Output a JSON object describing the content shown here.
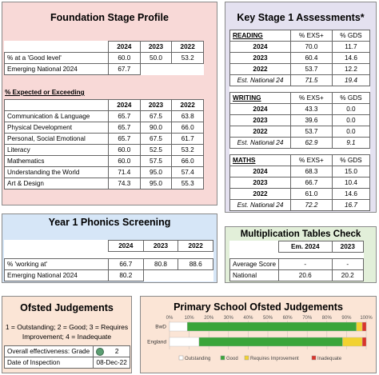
{
  "colors": {
    "outstanding": "#ffffff",
    "good": "#3aa53a",
    "requires_improvement": "#f2d231",
    "inadequate": "#d9342b",
    "grade_dot": "#5b9e72"
  },
  "fsp": {
    "title": "Foundation Stage Profile",
    "years": [
      "2024",
      "2023",
      "2022"
    ],
    "good_level": {
      "label": "% at a 'Good level'",
      "values": [
        "60.0",
        "50.0",
        "53.2"
      ]
    },
    "national": {
      "label": "Emerging National 2024",
      "value": "67.7"
    },
    "section_label": "% Expected or Exceeding",
    "rows": [
      {
        "label": "Communication & Language",
        "values": [
          "65.7",
          "67.5",
          "63.8"
        ]
      },
      {
        "label": "Physical Development",
        "values": [
          "65.7",
          "90.0",
          "66.0"
        ]
      },
      {
        "label": "Personal, Social Emotional",
        "values": [
          "65.7",
          "67.5",
          "61.7"
        ]
      },
      {
        "label": "Literacy",
        "values": [
          "60.0",
          "52.5",
          "53.2"
        ]
      },
      {
        "label": "Mathematics",
        "values": [
          "60.0",
          "57.5",
          "66.0"
        ]
      },
      {
        "label": "Understanding the World",
        "values": [
          "71.4",
          "95.0",
          "57.4"
        ]
      },
      {
        "label": "Art & Design",
        "values": [
          "74.3",
          "95.0",
          "55.3"
        ]
      }
    ]
  },
  "ks1": {
    "title": "Key Stage 1 Assessments*",
    "col1": "% EXS+",
    "col2": "% GDS",
    "subjects": [
      {
        "name": "READING",
        "col1": "% EXS+",
        "col2": "% GDS",
        "rows": [
          {
            "label": "2024",
            "exs": "70.0",
            "gds": "11.7"
          },
          {
            "label": "2023",
            "exs": "60.4",
            "gds": "14.6"
          },
          {
            "label": "2022",
            "exs": "53.7",
            "gds": "12.2"
          }
        ],
        "est": {
          "label": "Est. National 24",
          "exs": "71.5",
          "gds": "19.4"
        }
      },
      {
        "name": "WRITING",
        "col1": "% EXS+",
        "col2": "% GDS",
        "rows": [
          {
            "label": "2024",
            "exs": "43.3",
            "gds": "0.0"
          },
          {
            "label": "2023",
            "exs": "39.6",
            "gds": "0.0"
          },
          {
            "label": "2022",
            "exs": "53.7",
            "gds": "0.0"
          }
        ],
        "est": {
          "label": "Est. National 24",
          "exs": "62.9",
          "gds": "9.1"
        }
      },
      {
        "name": "MATHS",
        "col1": "% EXS+",
        "col2": "% GDS",
        "rows": [
          {
            "label": "2024",
            "exs": "68.3",
            "gds": "15.0"
          },
          {
            "label": "2023",
            "exs": "66.7",
            "gds": "10.4"
          },
          {
            "label": "2022",
            "exs": "61.0",
            "gds": "14.6"
          }
        ],
        "est": {
          "label": "Est. National 24",
          "exs": "72.2",
          "gds": "16.7"
        }
      }
    ]
  },
  "phonics": {
    "title": "Year 1 Phonics Screening",
    "years": [
      "2024",
      "2023",
      "2022"
    ],
    "working_at": {
      "label": "% 'working at'",
      "values": [
        "66.7",
        "80.8",
        "88.6"
      ]
    },
    "national": {
      "label": "Emerging National 2024",
      "value": "80.2"
    }
  },
  "mtc": {
    "title": "Multiplication Tables Check",
    "headers": [
      "Em. 2024",
      "2023"
    ],
    "rows": [
      {
        "label": "Average Score",
        "values": [
          "-",
          "-"
        ]
      },
      {
        "label": "National",
        "values": [
          "20.6",
          "20.2"
        ]
      }
    ]
  },
  "ofsted": {
    "title": "Ofsted Judgements",
    "key_line1": "1 = Outstanding; 2 = Good; 3 = Requires",
    "key_line2": "Improvement; 4 = Inadequate",
    "rows": [
      {
        "label": "Overall effectiveness: Grade",
        "value": "2"
      },
      {
        "label": "Date of Inspection",
        "value": "08-Dec-22"
      }
    ]
  },
  "chart_data": {
    "type": "bar",
    "title": "Primary School Ofsted Judgements",
    "orientation": "horizontal",
    "stacked": true,
    "categories": [
      "BwD",
      "England"
    ],
    "x_ticks": [
      "0%",
      "10%",
      "20%",
      "30%",
      "40%",
      "50%",
      "60%",
      "70%",
      "80%",
      "90%",
      "100%"
    ],
    "xlim": [
      0,
      100
    ],
    "series": [
      {
        "name": "Outstanding",
        "color": "#ffffff",
        "values": [
          9,
          15
        ]
      },
      {
        "name": "Good",
        "color": "#3aa53a",
        "values": [
          86,
          73
        ]
      },
      {
        "name": "Requires Improvement",
        "color": "#f2d231",
        "values": [
          3,
          10
        ]
      },
      {
        "name": "Inadequate",
        "color": "#d9342b",
        "values": [
          2,
          2
        ]
      }
    ],
    "legend_position": "bottom"
  }
}
